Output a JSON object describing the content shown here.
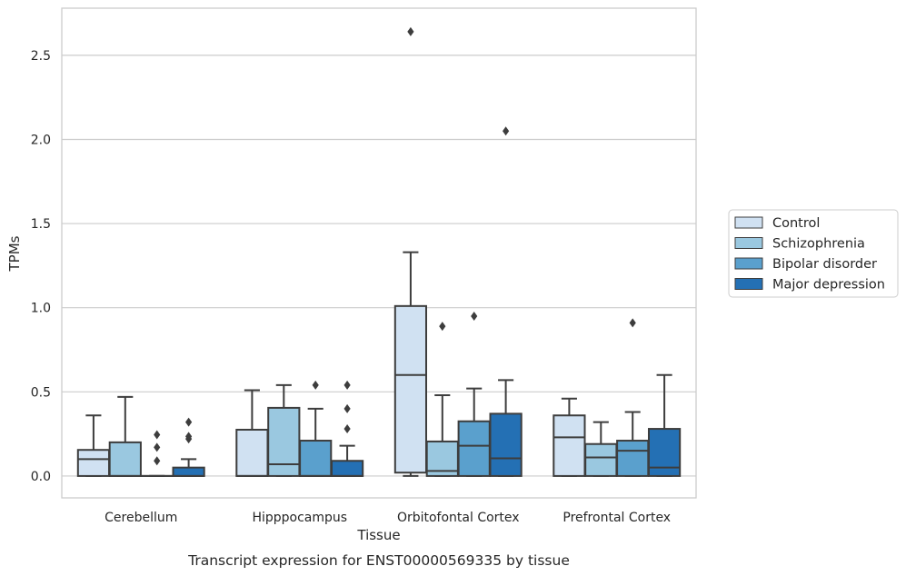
{
  "chart_data": {
    "type": "box",
    "title": "",
    "xlabel": "Tissue",
    "ylabel": "TPMs",
    "caption": "Transcript expression for ENST00000569335 by tissue",
    "ylim": [
      -0.13,
      2.78
    ],
    "yticks": [
      "0.0",
      "0.5",
      "1.0",
      "1.5",
      "2.0",
      "2.5"
    ],
    "grid": "horizontal",
    "legend_position": "right",
    "categories": [
      "Cerebellum",
      "Hipppocampus",
      "Orbitofontal Cortex",
      "Prefrontal Cortex"
    ],
    "series": [
      {
        "name": "Control",
        "color": "#d0e1f2",
        "boxes": [
          {
            "whislo": 0.0,
            "q1": 0.0,
            "med": 0.1,
            "q3": 0.155,
            "whishi": 0.36,
            "fliers": []
          },
          {
            "whislo": 0.0,
            "q1": 0.0,
            "med": 0.0,
            "q3": 0.275,
            "whishi": 0.51,
            "fliers": []
          },
          {
            "whislo": 0.0,
            "q1": 0.02,
            "med": 0.6,
            "q3": 1.01,
            "whishi": 1.33,
            "fliers": [
              2.64
            ]
          },
          {
            "whislo": 0.0,
            "q1": 0.0,
            "med": 0.23,
            "q3": 0.36,
            "whishi": 0.46,
            "fliers": []
          }
        ]
      },
      {
        "name": "Schizophrenia",
        "color": "#9ac8e0",
        "boxes": [
          {
            "whislo": 0.0,
            "q1": 0.0,
            "med": 0.0,
            "q3": 0.2,
            "whishi": 0.47,
            "fliers": []
          },
          {
            "whislo": 0.0,
            "q1": 0.0,
            "med": 0.07,
            "q3": 0.405,
            "whishi": 0.54,
            "fliers": []
          },
          {
            "whislo": 0.0,
            "q1": 0.0,
            "med": 0.03,
            "q3": 0.205,
            "whishi": 0.48,
            "fliers": [
              0.89
            ]
          },
          {
            "whislo": 0.0,
            "q1": 0.0,
            "med": 0.11,
            "q3": 0.19,
            "whishi": 0.32,
            "fliers": []
          }
        ]
      },
      {
        "name": "Bipolar disorder",
        "color": "#5aa0cd",
        "boxes": [
          {
            "whislo": 0.0,
            "q1": 0.0,
            "med": 0.0,
            "q3": 0.0,
            "whishi": 0.0,
            "fliers": [
              0.09,
              0.17,
              0.245
            ]
          },
          {
            "whislo": 0.0,
            "q1": 0.0,
            "med": 0.0,
            "q3": 0.21,
            "whishi": 0.4,
            "fliers": [
              0.54
            ]
          },
          {
            "whislo": 0.0,
            "q1": 0.0,
            "med": 0.18,
            "q3": 0.325,
            "whishi": 0.52,
            "fliers": [
              0.95
            ]
          },
          {
            "whislo": 0.0,
            "q1": 0.0,
            "med": 0.15,
            "q3": 0.21,
            "whishi": 0.38,
            "fliers": [
              0.91
            ]
          }
        ]
      },
      {
        "name": "Major depression",
        "color": "#2470b4",
        "boxes": [
          {
            "whislo": 0.0,
            "q1": 0.0,
            "med": 0.0,
            "q3": 0.05,
            "whishi": 0.1,
            "fliers": [
              0.22,
              0.235,
              0.32
            ]
          },
          {
            "whislo": 0.0,
            "q1": 0.0,
            "med": 0.0,
            "q3": 0.09,
            "whishi": 0.18,
            "fliers": [
              0.28,
              0.4,
              0.54
            ]
          },
          {
            "whislo": 0.0,
            "q1": 0.0,
            "med": 0.105,
            "q3": 0.37,
            "whishi": 0.57,
            "fliers": [
              2.05
            ]
          },
          {
            "whislo": 0.0,
            "q1": 0.0,
            "med": 0.05,
            "q3": 0.28,
            "whishi": 0.6,
            "fliers": []
          }
        ]
      }
    ]
  }
}
